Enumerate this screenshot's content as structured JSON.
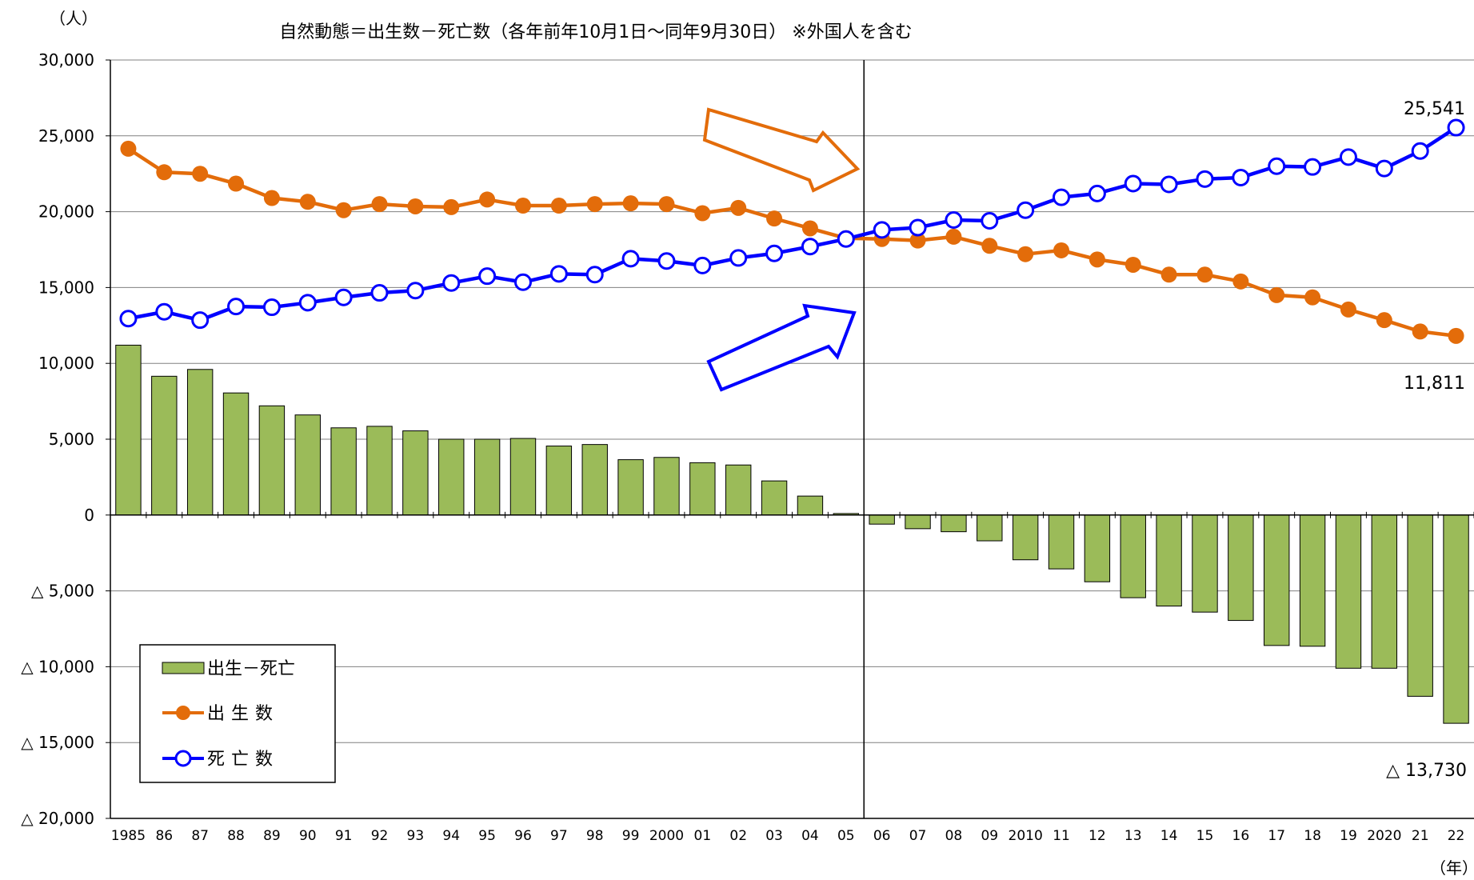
{
  "chart_data": {
    "type": "bar+line",
    "title": "自然動態＝出生数－死亡数（各年前年10月1日～同年9月30日）  ※外国人を含む",
    "y_unit": "（人）",
    "x_unit": "（年）",
    "ylim": [
      -20000,
      30000
    ],
    "y_ticks": [
      {
        "value": 30000,
        "label": "30,000"
      },
      {
        "value": 25000,
        "label": "25,000"
      },
      {
        "value": 20000,
        "label": "20,000"
      },
      {
        "value": 15000,
        "label": "15,000"
      },
      {
        "value": 10000,
        "label": "10,000"
      },
      {
        "value": 5000,
        "label": "5,000"
      },
      {
        "value": 0,
        "label": "0"
      },
      {
        "value": -5000,
        "label": "△ 5,000"
      },
      {
        "value": -10000,
        "label": "△ 10,000"
      },
      {
        "value": -15000,
        "label": "△ 15,000"
      },
      {
        "value": -20000,
        "label": "△ 20,000"
      }
    ],
    "categories": [
      "1985",
      "86",
      "87",
      "88",
      "89",
      "90",
      "91",
      "92",
      "93",
      "94",
      "95",
      "96",
      "97",
      "98",
      "99",
      "2000",
      "01",
      "02",
      "03",
      "04",
      "05",
      "06",
      "07",
      "08",
      "09",
      "2010",
      "11",
      "12",
      "13",
      "14",
      "15",
      "16",
      "17",
      "18",
      "19",
      "2020",
      "21",
      "22"
    ],
    "grid": true,
    "legend_position": "bottom-left",
    "series": [
      {
        "name": "出生－死亡",
        "kind": "bar",
        "color": "#9bbb59",
        "values": [
          11200,
          9150,
          9600,
          8050,
          7200,
          6600,
          5750,
          5850,
          5550,
          5000,
          5000,
          5050,
          4550,
          4650,
          3650,
          3800,
          3450,
          3300,
          2250,
          1250,
          100,
          -600,
          -900,
          -1100,
          -1700,
          -2950,
          -3550,
          -4400,
          -5450,
          -6000,
          -6400,
          -6950,
          -8600,
          -8650,
          -10100,
          -10100,
          -11950,
          -13730
        ]
      },
      {
        "name": "出生数",
        "kind": "line",
        "marker": "filled",
        "color": "#e36c0a",
        "values": [
          24150,
          22600,
          22500,
          21850,
          20900,
          20650,
          20100,
          20500,
          20350,
          20300,
          20800,
          20400,
          20400,
          20500,
          20550,
          20500,
          19900,
          20250,
          19550,
          18900,
          18250,
          18200,
          18100,
          18350,
          17750,
          17200,
          17450,
          16850,
          16500,
          15850,
          15850,
          15400,
          14500,
          14350,
          13550,
          12850,
          12100,
          11811
        ]
      },
      {
        "name": "死亡数",
        "kind": "line",
        "marker": "open",
        "color": "#0000ff",
        "values": [
          12950,
          13400,
          12850,
          13750,
          13700,
          14000,
          14350,
          14650,
          14800,
          15300,
          15750,
          15350,
          15900,
          15850,
          16900,
          16750,
          16450,
          16950,
          17250,
          17700,
          18200,
          18800,
          18950,
          19450,
          19400,
          20100,
          20950,
          21200,
          21850,
          21800,
          22150,
          22250,
          23000,
          22950,
          23600,
          22850,
          24000,
          25541
        ]
      }
    ],
    "annotations": {
      "deaths_last": "25,541",
      "births_last": "11,811",
      "net_last": "△ 13,730"
    },
    "divider_after_category": "05",
    "trend_arrows": [
      {
        "color": "#e36c0a",
        "direction": "down-right"
      },
      {
        "color": "#0000ff",
        "direction": "up-right"
      }
    ]
  }
}
